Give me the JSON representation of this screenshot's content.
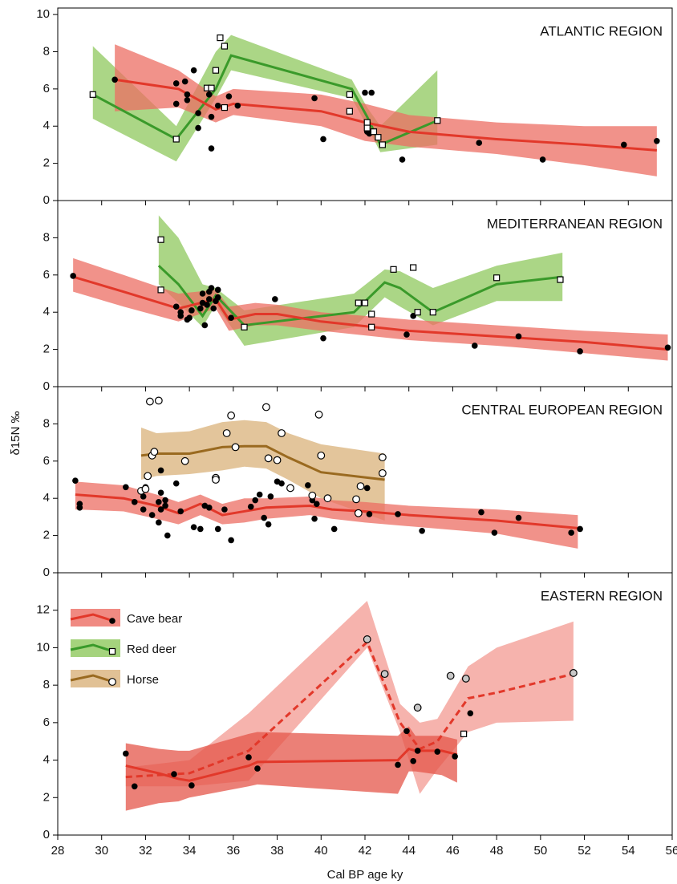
{
  "chart_data": {
    "type": "panels",
    "xlabel": "Cal BP age ky",
    "ylabel": "δ15N ‰",
    "xlim": [
      28,
      56
    ],
    "xticks": [
      28,
      30,
      32,
      34,
      36,
      38,
      40,
      42,
      44,
      46,
      48,
      50,
      52,
      54,
      56
    ],
    "legend": {
      "position": "upper left",
      "entries": [
        {
          "name": "Cave bear",
          "color": "#e2382a",
          "band_color": "#ec6d63",
          "marker": "dot"
        },
        {
          "name": "Red deer",
          "color": "#3a9a2a",
          "band_color": "#8fc85d",
          "marker": "square"
        },
        {
          "name": "Horse",
          "color": "#9a6a20",
          "band_color": "#d9b27a",
          "marker": "circle"
        }
      ]
    },
    "panels": [
      {
        "type": "line",
        "title": "ATLANTIC REGION",
        "ylim": [
          0,
          10.35
        ],
        "yticks": [
          0,
          2,
          4,
          6,
          8,
          10
        ],
        "series": [
          {
            "color": "#3a9a2a",
            "band_color": "#8fc85d",
            "dashed": false,
            "x": [
              29.6,
              33.4,
              35.2,
              35.9,
              41.4,
              42.1,
              42.7,
              45.3
            ],
            "values": [
              5.7,
              3.3,
              6.0,
              7.8,
              6.0,
              4.5,
              3.0,
              4.3
            ],
            "upper": [
              8.3,
              4.0,
              8.0,
              8.9,
              6.5,
              5.0,
              4.0,
              7.0
            ],
            "lower": [
              4.4,
              2.1,
              5.5,
              7.0,
              5.5,
              4.0,
              2.6,
              3.0
            ]
          },
          {
            "color": "#e2382a",
            "band_color": "#ec6d63",
            "dashed": false,
            "x": [
              30.6,
              33.5,
              35.2,
              36,
              40,
              42,
              44,
              48,
              52,
              55.3
            ],
            "values": [
              6.5,
              6.0,
              4.9,
              5.2,
              4.8,
              4.2,
              3.7,
              3.3,
              3.0,
              2.7
            ],
            "upper": [
              8.4,
              7.0,
              5.6,
              6.0,
              5.7,
              5.2,
              4.6,
              4.2,
              4.0,
              4.0
            ],
            "lower": [
              4.8,
              5.0,
              4.2,
              4.6,
              4.0,
              3.2,
              2.9,
              2.5,
              1.9,
              1.3
            ]
          }
        ],
        "points": [
          {
            "marker": "dot",
            "x": [
              30.6,
              33.4,
              33.8,
              33.4,
              33.9,
              33.9,
              34.2,
              34.4,
              34.4,
              34.9,
              35.0,
              35.0,
              35.3,
              35.8,
              36.2,
              39.7,
              40.1,
              42.0,
              42.3,
              42.1,
              42.2,
              43.7,
              47.2,
              50.1,
              53.8,
              55.3
            ],
            "y": [
              6.5,
              6.3,
              6.4,
              5.2,
              5.7,
              5.4,
              7.0,
              4.7,
              3.9,
              5.7,
              4.5,
              2.8,
              5.1,
              5.6,
              5.1,
              5.5,
              3.3,
              5.8,
              5.8,
              3.7,
              3.6,
              2.2,
              3.1,
              2.2,
              3.0,
              3.2
            ]
          },
          {
            "marker": "square",
            "x": [
              29.6,
              33.4,
              34.8,
              35.0,
              35.2,
              35.4,
              35.6,
              35.6,
              41.3,
              41.3,
              42.1,
              42.1,
              42.4,
              42.6,
              42.8,
              45.3
            ],
            "y": [
              5.7,
              3.3,
              6.05,
              6.05,
              7.0,
              8.75,
              8.3,
              5.0,
              5.7,
              4.8,
              4.2,
              3.9,
              3.7,
              3.4,
              3.0,
              4.3
            ]
          }
        ]
      },
      {
        "type": "line",
        "title": "MEDITERRANEAN REGION",
        "ylim": [
          0,
          10
        ],
        "yticks": [
          0,
          2,
          4,
          6,
          8
        ],
        "series": [
          {
            "color": "#3a9a2a",
            "band_color": "#8fc85d",
            "dashed": false,
            "x": [
              32.6,
              33.5,
              34.6,
              35.2,
              36.5,
              41.5,
              42.9,
              43.6,
              45.1,
              48,
              51
            ],
            "values": [
              6.5,
              5.5,
              3.8,
              4.9,
              3.3,
              4.0,
              5.6,
              5.3,
              4.0,
              5.5,
              5.9
            ],
            "upper": [
              9.2,
              8.0,
              5.5,
              5.3,
              4.1,
              5.0,
              6.3,
              6.2,
              5.3,
              6.5,
              7.2
            ],
            "lower": [
              5.5,
              4.5,
              3.2,
              4.4,
              2.2,
              3.2,
              4.8,
              4.3,
              3.3,
              4.6,
              4.6
            ]
          },
          {
            "color": "#e2382a",
            "band_color": "#ec6d63",
            "dashed": false,
            "x": [
              28.7,
              31,
              33.5,
              35.2,
              35.8,
              37,
              38,
              40,
              44,
              48,
              52,
              55.8
            ],
            "values": [
              5.9,
              5.1,
              4.2,
              4.7,
              3.6,
              3.9,
              3.9,
              3.5,
              3.0,
              2.7,
              2.4,
              2.0
            ],
            "upper": [
              6.9,
              6.0,
              5.0,
              5.2,
              4.3,
              4.5,
              4.4,
              4.0,
              3.6,
              3.3,
              3.0,
              2.8
            ],
            "lower": [
              5.1,
              4.3,
              3.5,
              4.2,
              3.0,
              3.3,
              3.3,
              3.0,
              2.5,
              2.2,
              1.8,
              1.4
            ]
          }
        ],
        "points": [
          {
            "marker": "dot",
            "x": [
              28.7,
              33.4,
              33.6,
              33.6,
              33.9,
              34.0,
              34.1,
              34.5,
              34.6,
              34.6,
              34.7,
              34.8,
              34.9,
              34.9,
              35.0,
              35.1,
              35.2,
              35.3,
              35.3,
              35.9,
              37.9,
              40.1,
              43.9,
              44.2,
              47.0,
              49.0,
              51.8,
              55.8
            ],
            "y": [
              5.95,
              4.3,
              4.0,
              3.8,
              3.6,
              3.7,
              4.1,
              4.2,
              4.5,
              5.0,
              3.3,
              4.4,
              5.1,
              4.7,
              5.3,
              4.2,
              4.6,
              5.2,
              4.8,
              3.7,
              4.7,
              2.6,
              2.8,
              3.8,
              2.2,
              2.7,
              1.9,
              2.1
            ]
          },
          {
            "marker": "square",
            "x": [
              32.7,
              32.7,
              36.5,
              41.7,
              42.0,
              42.3,
              42.3,
              43.3,
              44.2,
              44.4,
              45.1,
              48.0,
              50.9
            ],
            "y": [
              7.9,
              5.2,
              3.2,
              4.5,
              4.5,
              3.9,
              3.2,
              6.3,
              6.4,
              4.0,
              4.0,
              5.85,
              5.75
            ]
          }
        ]
      },
      {
        "type": "line",
        "title": "CENTRAL EUROPEAN REGION",
        "ylim": [
          0,
          10
        ],
        "yticks": [
          0,
          2,
          4,
          6,
          8
        ],
        "series": [
          {
            "color": "#9a6a20",
            "band_color": "#d9b27a",
            "dashed": false,
            "x": [
              31.8,
              32.5,
              34,
              35.5,
              36.5,
              37.5,
              38.5,
              40,
              42.9
            ],
            "values": [
              6.3,
              6.4,
              6.4,
              6.75,
              6.8,
              6.8,
              6.2,
              5.4,
              5.0
            ],
            "upper": [
              7.8,
              7.5,
              7.6,
              8.1,
              8.2,
              8.1,
              7.5,
              6.9,
              6.4
            ],
            "lower": [
              5.0,
              5.2,
              5.3,
              5.5,
              5.7,
              5.6,
              5.0,
              4.0,
              2.8
            ]
          },
          {
            "color": "#e2382a",
            "band_color": "#ec6d63",
            "dashed": false,
            "x": [
              28.8,
              31,
              32.5,
              33.5,
              34.5,
              35.5,
              36.5,
              37.5,
              39.5,
              40.5,
              42,
              44,
              48,
              51.7
            ],
            "values": [
              4.2,
              4.0,
              3.6,
              3.2,
              3.7,
              3.1,
              3.3,
              3.5,
              3.6,
              3.4,
              3.3,
              3.1,
              2.8,
              2.4
            ],
            "upper": [
              4.9,
              4.7,
              4.2,
              3.8,
              4.2,
              3.7,
              4.0,
              4.0,
              4.1,
              3.9,
              3.8,
              3.6,
              3.4,
              3.1
            ],
            "lower": [
              3.4,
              3.3,
              2.9,
              2.6,
              3.1,
              2.6,
              2.7,
              2.9,
              3.1,
              2.9,
              2.7,
              2.5,
              2.1,
              1.3
            ]
          }
        ],
        "points": [
          {
            "marker": "dot",
            "x": [
              28.8,
              29.0,
              29.0,
              31.1,
              31.5,
              31.9,
              31.9,
              32.0,
              32.3,
              32.6,
              32.6,
              32.7,
              32.7,
              32.7,
              32.9,
              32.9,
              33.0,
              33.4,
              33.6,
              34.2,
              34.5,
              34.7,
              34.9,
              35.3,
              35.6,
              35.9,
              36.8,
              37.0,
              37.2,
              37.4,
              37.6,
              37.7,
              38.0,
              38.2,
              39.4,
              39.6,
              39.8,
              39.7,
              40.6,
              42.1,
              42.2,
              43.5,
              44.6,
              47.3,
              47.9,
              49.0,
              51.4,
              51.8
            ],
            "y": [
              4.95,
              3.7,
              3.5,
              4.6,
              3.8,
              3.4,
              4.1,
              4.6,
              3.1,
              3.8,
              2.7,
              4.3,
              5.5,
              3.4,
              3.6,
              3.9,
              2.0,
              4.8,
              3.3,
              2.45,
              2.35,
              3.6,
              3.5,
              2.35,
              3.4,
              1.75,
              3.55,
              3.9,
              4.2,
              2.95,
              2.6,
              4.1,
              4.9,
              4.8,
              4.7,
              3.9,
              3.7,
              2.9,
              2.35,
              4.55,
              3.15,
              3.15,
              2.25,
              3.25,
              2.15,
              2.95,
              2.15,
              2.35
            ]
          },
          {
            "marker": "circle",
            "x": [
              31.8,
              32.0,
              32.1,
              32.2,
              32.3,
              32.4,
              32.6,
              33.8,
              35.2,
              35.2,
              35.7,
              35.9,
              36.1,
              37.5,
              37.6,
              38.0,
              38.2,
              38.6,
              39.6,
              39.9,
              40.0,
              40.3,
              41.6,
              41.7,
              41.8,
              42.8,
              42.8
            ],
            "y": [
              4.4,
              4.5,
              5.2,
              9.2,
              6.3,
              6.5,
              9.25,
              6.0,
              5.1,
              5.0,
              7.5,
              8.45,
              6.75,
              8.9,
              6.15,
              6.05,
              7.5,
              4.55,
              4.15,
              8.5,
              6.3,
              4.0,
              3.95,
              3.2,
              4.65,
              6.2,
              5.35
            ]
          }
        ]
      },
      {
        "type": "line",
        "title": "EASTERN REGION",
        "ylim": [
          0,
          14
        ],
        "yticks": [
          0,
          2,
          4,
          6,
          8,
          10,
          12
        ],
        "series": [
          {
            "color": "#e2382a",
            "band_color": "#f39a92",
            "dashed": true,
            "x": [
              31.1,
              34.0,
              36.7,
              42.1,
              43.6,
              44.5,
              45.3,
              46.7,
              48,
              51.5
            ],
            "values": [
              3.1,
              3.3,
              4.5,
              10.3,
              6.0,
              4.6,
              5.0,
              7.3,
              7.6,
              8.6
            ],
            "upper": [
              3.6,
              4.0,
              6.5,
              12.5,
              7.0,
              6.0,
              6.2,
              9.0,
              10.0,
              11.4
            ],
            "lower": [
              2.6,
              2.6,
              2.9,
              10.0,
              5.5,
              2.2,
              3.5,
              5.5,
              6.0,
              6.1
            ]
          },
          {
            "color": "#e2382a",
            "band_color": "#e4554a",
            "dashed": false,
            "x": [
              31.1,
              32.6,
              33.5,
              34.0,
              36.7,
              37.1,
              43.5,
              44.0,
              44.3,
              45.5,
              46.2
            ],
            "values": [
              3.7,
              3.3,
              3.0,
              2.9,
              3.7,
              3.9,
              4.0,
              4.6,
              4.5,
              4.5,
              4.3
            ],
            "upper": [
              4.9,
              4.6,
              4.5,
              4.5,
              5.4,
              5.5,
              5.3,
              5.8,
              5.3,
              5.3,
              5.1
            ],
            "lower": [
              1.3,
              1.7,
              1.8,
              2.0,
              2.6,
              2.7,
              2.2,
              3.4,
              3.4,
              3.2,
              2.8
            ]
          }
        ],
        "points": [
          {
            "marker": "dot",
            "x": [
              31.1,
              31.5,
              33.3,
              34.1,
              36.7,
              37.1,
              43.5,
              43.9,
              44.2,
              44.4,
              45.3,
              46.1,
              46.8
            ],
            "y": [
              4.35,
              2.6,
              3.25,
              2.65,
              4.15,
              3.55,
              3.75,
              5.55,
              3.95,
              4.5,
              4.45,
              4.2,
              6.5
            ]
          },
          {
            "marker": "grey-circle",
            "x": [
              42.1,
              42.9,
              44.4,
              45.9,
              46.6,
              51.5
            ],
            "y": [
              10.45,
              8.6,
              6.8,
              8.5,
              8.35,
              8.65
            ]
          },
          {
            "marker": "square",
            "x": [
              46.5
            ],
            "y": [
              5.4
            ]
          }
        ]
      }
    ]
  }
}
